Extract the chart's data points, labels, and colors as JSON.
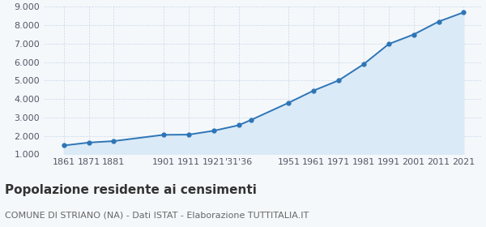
{
  "years": [
    1861,
    1871,
    1881,
    1901,
    1911,
    1921,
    1931,
    1936,
    1951,
    1961,
    1971,
    1981,
    1991,
    2001,
    2011,
    2021
  ],
  "population": [
    1480,
    1640,
    1720,
    2060,
    2070,
    2280,
    2580,
    2870,
    3800,
    4460,
    5010,
    5890,
    6980,
    7500,
    8200,
    8700
  ],
  "line_color": "#2e75b6",
  "fill_color": "#daeaf7",
  "marker_color": "#2e75b6",
  "grid_color": "#c8d8e8",
  "background_color": "#f5f8fb",
  "title": "Popolazione residente ai censimenti",
  "subtitle": "COMUNE DI STRIANO (NA) - Dati ISTAT - Elaborazione TUTTITALIA.IT",
  "ylim": [
    1000,
    9000
  ],
  "yticks": [
    1000,
    2000,
    3000,
    4000,
    5000,
    6000,
    7000,
    8000,
    9000
  ],
  "xlim_left": 1853,
  "xlim_right": 2028,
  "title_fontsize": 11,
  "subtitle_fontsize": 8,
  "tick_fontsize": 8
}
